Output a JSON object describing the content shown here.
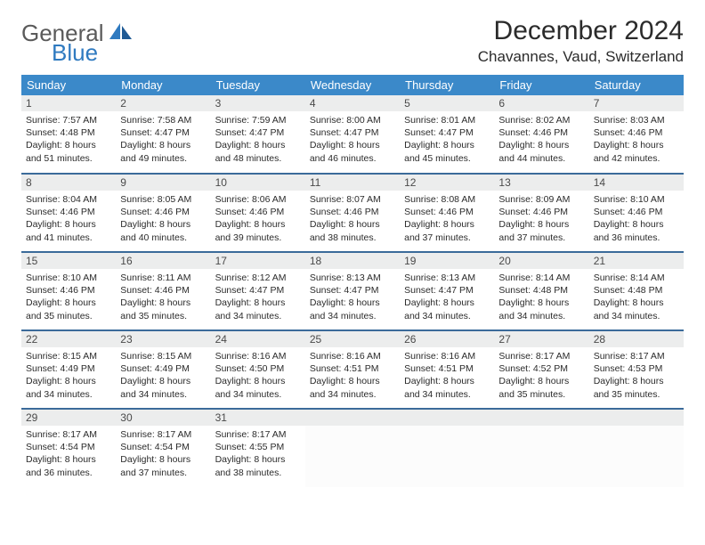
{
  "logo": {
    "word1": "General",
    "word2": "Blue"
  },
  "title": "December 2024",
  "location": "Chavannes, Vaud, Switzerland",
  "header_bg": "#3b89c9",
  "rule_color": "#3b6b9a",
  "daynum_bg": "#eceded",
  "weekdays": [
    "Sunday",
    "Monday",
    "Tuesday",
    "Wednesday",
    "Thursday",
    "Friday",
    "Saturday"
  ],
  "days": [
    {
      "n": "1",
      "sr": "7:57 AM",
      "ss": "4:48 PM",
      "dl": "8 hours and 51 minutes."
    },
    {
      "n": "2",
      "sr": "7:58 AM",
      "ss": "4:47 PM",
      "dl": "8 hours and 49 minutes."
    },
    {
      "n": "3",
      "sr": "7:59 AM",
      "ss": "4:47 PM",
      "dl": "8 hours and 48 minutes."
    },
    {
      "n": "4",
      "sr": "8:00 AM",
      "ss": "4:47 PM",
      "dl": "8 hours and 46 minutes."
    },
    {
      "n": "5",
      "sr": "8:01 AM",
      "ss": "4:47 PM",
      "dl": "8 hours and 45 minutes."
    },
    {
      "n": "6",
      "sr": "8:02 AM",
      "ss": "4:46 PM",
      "dl": "8 hours and 44 minutes."
    },
    {
      "n": "7",
      "sr": "8:03 AM",
      "ss": "4:46 PM",
      "dl": "8 hours and 42 minutes."
    },
    {
      "n": "8",
      "sr": "8:04 AM",
      "ss": "4:46 PM",
      "dl": "8 hours and 41 minutes."
    },
    {
      "n": "9",
      "sr": "8:05 AM",
      "ss": "4:46 PM",
      "dl": "8 hours and 40 minutes."
    },
    {
      "n": "10",
      "sr": "8:06 AM",
      "ss": "4:46 PM",
      "dl": "8 hours and 39 minutes."
    },
    {
      "n": "11",
      "sr": "8:07 AM",
      "ss": "4:46 PM",
      "dl": "8 hours and 38 minutes."
    },
    {
      "n": "12",
      "sr": "8:08 AM",
      "ss": "4:46 PM",
      "dl": "8 hours and 37 minutes."
    },
    {
      "n": "13",
      "sr": "8:09 AM",
      "ss": "4:46 PM",
      "dl": "8 hours and 37 minutes."
    },
    {
      "n": "14",
      "sr": "8:10 AM",
      "ss": "4:46 PM",
      "dl": "8 hours and 36 minutes."
    },
    {
      "n": "15",
      "sr": "8:10 AM",
      "ss": "4:46 PM",
      "dl": "8 hours and 35 minutes."
    },
    {
      "n": "16",
      "sr": "8:11 AM",
      "ss": "4:46 PM",
      "dl": "8 hours and 35 minutes."
    },
    {
      "n": "17",
      "sr": "8:12 AM",
      "ss": "4:47 PM",
      "dl": "8 hours and 34 minutes."
    },
    {
      "n": "18",
      "sr": "8:13 AM",
      "ss": "4:47 PM",
      "dl": "8 hours and 34 minutes."
    },
    {
      "n": "19",
      "sr": "8:13 AM",
      "ss": "4:47 PM",
      "dl": "8 hours and 34 minutes."
    },
    {
      "n": "20",
      "sr": "8:14 AM",
      "ss": "4:48 PM",
      "dl": "8 hours and 34 minutes."
    },
    {
      "n": "21",
      "sr": "8:14 AM",
      "ss": "4:48 PM",
      "dl": "8 hours and 34 minutes."
    },
    {
      "n": "22",
      "sr": "8:15 AM",
      "ss": "4:49 PM",
      "dl": "8 hours and 34 minutes."
    },
    {
      "n": "23",
      "sr": "8:15 AM",
      "ss": "4:49 PM",
      "dl": "8 hours and 34 minutes."
    },
    {
      "n": "24",
      "sr": "8:16 AM",
      "ss": "4:50 PM",
      "dl": "8 hours and 34 minutes."
    },
    {
      "n": "25",
      "sr": "8:16 AM",
      "ss": "4:51 PM",
      "dl": "8 hours and 34 minutes."
    },
    {
      "n": "26",
      "sr": "8:16 AM",
      "ss": "4:51 PM",
      "dl": "8 hours and 34 minutes."
    },
    {
      "n": "27",
      "sr": "8:17 AM",
      "ss": "4:52 PM",
      "dl": "8 hours and 35 minutes."
    },
    {
      "n": "28",
      "sr": "8:17 AM",
      "ss": "4:53 PM",
      "dl": "8 hours and 35 minutes."
    },
    {
      "n": "29",
      "sr": "8:17 AM",
      "ss": "4:54 PM",
      "dl": "8 hours and 36 minutes."
    },
    {
      "n": "30",
      "sr": "8:17 AM",
      "ss": "4:54 PM",
      "dl": "8 hours and 37 minutes."
    },
    {
      "n": "31",
      "sr": "8:17 AM",
      "ss": "4:55 PM",
      "dl": "8 hours and 38 minutes."
    }
  ],
  "labels": {
    "sunrise": "Sunrise: ",
    "sunset": "Sunset: ",
    "daylight": "Daylight: "
  },
  "start_weekday_index": 0,
  "trailing_empty": 4
}
